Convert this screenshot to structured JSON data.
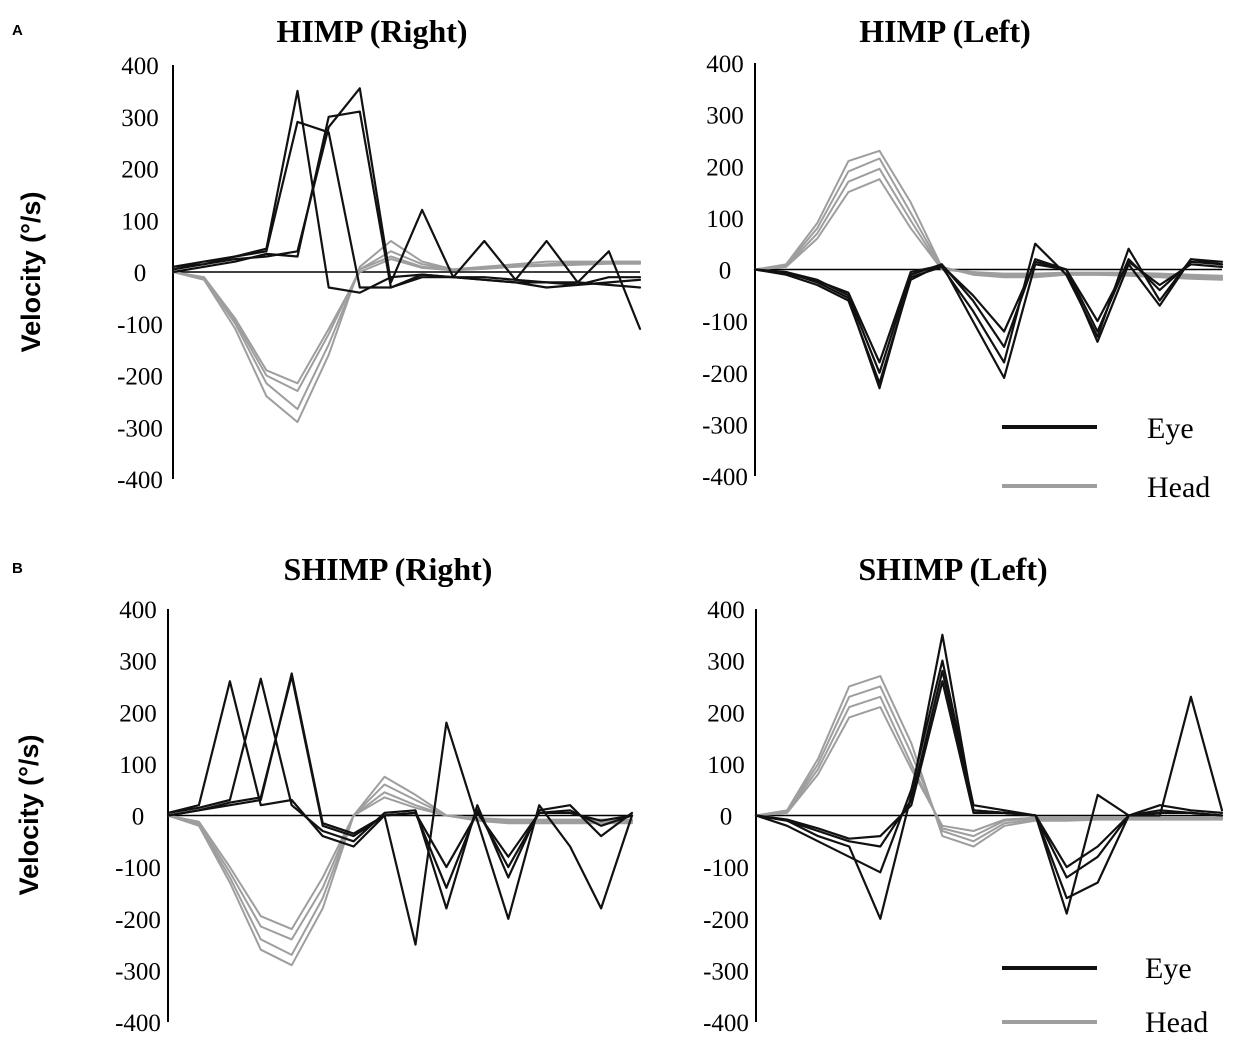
{
  "panels": [
    {
      "letter": "A"
    },
    {
      "letter": "B"
    }
  ],
  "legend": {
    "items": [
      {
        "label": "Eye",
        "color": "#111111"
      },
      {
        "label": "Head",
        "color": "#9e9e9e"
      }
    ]
  },
  "colors": {
    "eye": "#111111",
    "head": "#9e9e9e",
    "axis": "#000000"
  },
  "chart_data": [
    {
      "type": "line",
      "title": "HIMP (Right)",
      "ylabel": "Velocity (°/s)",
      "xlabel": "",
      "ylim": [
        -400,
        400
      ],
      "yticks": [
        400,
        300,
        200,
        100,
        0,
        -100,
        -200,
        -300,
        -400
      ],
      "x": [
        0,
        20,
        40,
        60,
        80,
        100,
        120,
        140,
        160,
        180,
        200,
        220,
        240,
        260,
        280,
        300
      ],
      "series": [
        {
          "group": "Head",
          "values": [
            0,
            -15,
            -110,
            -240,
            -290,
            -160,
            10,
            60,
            20,
            5,
            10,
            15,
            20,
            20,
            20,
            20
          ]
        },
        {
          "group": "Head",
          "values": [
            0,
            -12,
            -100,
            -215,
            -265,
            -140,
            5,
            40,
            15,
            5,
            8,
            12,
            15,
            18,
            20,
            20
          ]
        },
        {
          "group": "Head",
          "values": [
            0,
            -10,
            -95,
            -200,
            -230,
            -120,
            5,
            30,
            10,
            4,
            8,
            10,
            14,
            16,
            18,
            18
          ]
        },
        {
          "group": "Head",
          "values": [
            0,
            -10,
            -90,
            -190,
            -215,
            -110,
            0,
            25,
            8,
            3,
            6,
            10,
            12,
            14,
            16,
            16
          ]
        },
        {
          "group": "Eye",
          "values": [
            10,
            20,
            30,
            45,
            350,
            -30,
            -40,
            -10,
            -5,
            -10,
            -15,
            -20,
            -30,
            -25,
            -10,
            -10
          ]
        },
        {
          "group": "Eye",
          "values": [
            5,
            15,
            30,
            40,
            290,
            270,
            -30,
            -30,
            -10,
            -10,
            -15,
            -20,
            -20,
            -25,
            -20,
            -15
          ]
        },
        {
          "group": "Eye",
          "values": [
            0,
            10,
            20,
            35,
            30,
            300,
            310,
            -30,
            -5,
            -10,
            -10,
            -15,
            -20,
            -20,
            -25,
            -30
          ]
        },
        {
          "group": "Eye",
          "values": [
            10,
            15,
            25,
            30,
            40,
            280,
            355,
            -20,
            120,
            -10,
            60,
            -15,
            60,
            -20,
            40,
            -110
          ]
        }
      ]
    },
    {
      "type": "line",
      "title": "HIMP (Left)",
      "ylabel": "",
      "xlabel": "",
      "ylim": [
        -400,
        400
      ],
      "yticks": [
        400,
        300,
        200,
        100,
        0,
        -100,
        -200,
        -300,
        -400
      ],
      "x": [
        0,
        20,
        40,
        60,
        80,
        100,
        120,
        140,
        160,
        180,
        200,
        220,
        240,
        260,
        280,
        300
      ],
      "series": [
        {
          "group": "Head",
          "values": [
            0,
            10,
            90,
            210,
            230,
            130,
            5,
            -10,
            -15,
            -15,
            -10,
            -10,
            -12,
            -15,
            -18,
            -20
          ]
        },
        {
          "group": "Head",
          "values": [
            0,
            8,
            80,
            190,
            215,
            110,
            3,
            -8,
            -12,
            -12,
            -10,
            -10,
            -10,
            -12,
            -15,
            -18
          ]
        },
        {
          "group": "Head",
          "values": [
            0,
            6,
            70,
            170,
            195,
            95,
            0,
            -5,
            -10,
            -10,
            -8,
            -8,
            -8,
            -10,
            -12,
            -15
          ]
        },
        {
          "group": "Head",
          "values": [
            0,
            5,
            60,
            150,
            175,
            80,
            0,
            -5,
            -8,
            -8,
            -6,
            -6,
            -6,
            -8,
            -10,
            -12
          ]
        },
        {
          "group": "Eye",
          "values": [
            0,
            -10,
            -30,
            -60,
            -220,
            -20,
            10,
            -100,
            -210,
            10,
            0,
            -140,
            10,
            -70,
            20,
            15
          ]
        },
        {
          "group": "Eye",
          "values": [
            0,
            -5,
            -25,
            -55,
            -230,
            -15,
            5,
            -80,
            -180,
            50,
            -10,
            -130,
            40,
            -60,
            20,
            10
          ]
        },
        {
          "group": "Eye",
          "values": [
            0,
            -5,
            -20,
            -50,
            -200,
            -10,
            10,
            -60,
            -150,
            20,
            0,
            -120,
            20,
            -40,
            15,
            10
          ]
        },
        {
          "group": "Eye",
          "values": [
            0,
            -8,
            -22,
            -45,
            -180,
            -5,
            8,
            -50,
            -120,
            15,
            0,
            -100,
            15,
            -30,
            10,
            5
          ]
        }
      ]
    },
    {
      "type": "line",
      "title": "SHIMP (Right)",
      "ylabel": "Velocity (°/s)",
      "xlabel": "",
      "ylim": [
        -400,
        400
      ],
      "yticks": [
        400,
        300,
        200,
        100,
        0,
        -100,
        -200,
        -300,
        -400
      ],
      "x": [
        0,
        20,
        40,
        60,
        80,
        100,
        120,
        140,
        160,
        180,
        200,
        220,
        240,
        260,
        280,
        300
      ],
      "series": [
        {
          "group": "Head",
          "values": [
            0,
            -20,
            -130,
            -260,
            -290,
            -180,
            0,
            75,
            40,
            0,
            -10,
            -15,
            -15,
            -15,
            -15,
            -15
          ]
        },
        {
          "group": "Head",
          "values": [
            0,
            -18,
            -120,
            -240,
            -270,
            -160,
            0,
            60,
            30,
            0,
            -8,
            -12,
            -12,
            -12,
            -12,
            -12
          ]
        },
        {
          "group": "Head",
          "values": [
            0,
            -15,
            -110,
            -215,
            -240,
            -140,
            0,
            45,
            20,
            0,
            -5,
            -10,
            -10,
            -10,
            -10,
            -10
          ]
        },
        {
          "group": "Head",
          "values": [
            0,
            -12,
            -100,
            -195,
            -220,
            -120,
            0,
            35,
            15,
            0,
            -5,
            -8,
            -8,
            -8,
            -8,
            -8
          ]
        },
        {
          "group": "Eye",
          "values": [
            5,
            20,
            260,
            20,
            30,
            -40,
            -60,
            0,
            -250,
            180,
            -10,
            -200,
            20,
            -60,
            -180,
            0
          ]
        },
        {
          "group": "Eye",
          "values": [
            5,
            15,
            30,
            265,
            20,
            -30,
            -50,
            5,
            10,
            -180,
            20,
            -120,
            10,
            20,
            -40,
            5
          ]
        },
        {
          "group": "Eye",
          "values": [
            0,
            10,
            25,
            35,
            270,
            -20,
            -40,
            0,
            5,
            -140,
            10,
            -100,
            5,
            10,
            -20,
            0
          ]
        },
        {
          "group": "Eye",
          "values": [
            0,
            10,
            20,
            30,
            275,
            -15,
            -35,
            0,
            5,
            -100,
            5,
            -80,
            5,
            5,
            -10,
            0
          ]
        }
      ]
    },
    {
      "type": "line",
      "title": "SHIMP (Left)",
      "ylabel": "",
      "xlabel": "",
      "ylim": [
        -400,
        400
      ],
      "yticks": [
        400,
        300,
        200,
        100,
        0,
        -100,
        -200,
        -300,
        -400
      ],
      "x": [
        0,
        20,
        40,
        60,
        80,
        100,
        120,
        140,
        160,
        180,
        200,
        220,
        240,
        260,
        280,
        300
      ],
      "series": [
        {
          "group": "Head",
          "values": [
            0,
            10,
            110,
            250,
            270,
            140,
            -40,
            -60,
            -20,
            -10,
            -10,
            -8,
            -8,
            -8,
            -8,
            -8
          ]
        },
        {
          "group": "Head",
          "values": [
            0,
            8,
            100,
            230,
            250,
            120,
            -30,
            -50,
            -15,
            -8,
            -8,
            -6,
            -6,
            -6,
            -6,
            -6
          ]
        },
        {
          "group": "Head",
          "values": [
            0,
            6,
            90,
            210,
            230,
            100,
            -25,
            -40,
            -10,
            -5,
            -5,
            -5,
            -5,
            -5,
            -5,
            -5
          ]
        },
        {
          "group": "Head",
          "values": [
            0,
            5,
            80,
            190,
            210,
            90,
            -20,
            -30,
            -8,
            -4,
            -4,
            -4,
            -4,
            -4,
            -4,
            -4
          ]
        },
        {
          "group": "Eye",
          "values": [
            0,
            -10,
            -40,
            -60,
            -200,
            40,
            350,
            10,
            5,
            0,
            -190,
            40,
            0,
            0,
            230,
            10
          ]
        },
        {
          "group": "Eye",
          "values": [
            0,
            -20,
            -50,
            -80,
            -110,
            50,
            300,
            20,
            10,
            0,
            -160,
            -130,
            0,
            20,
            10,
            5
          ]
        },
        {
          "group": "Eye",
          "values": [
            0,
            -10,
            -30,
            -50,
            -60,
            30,
            280,
            10,
            5,
            0,
            -120,
            -80,
            0,
            10,
            5,
            0
          ]
        },
        {
          "group": "Eye",
          "values": [
            0,
            -8,
            -25,
            -45,
            -40,
            20,
            260,
            5,
            5,
            0,
            -100,
            -60,
            0,
            5,
            5,
            0
          ]
        }
      ]
    }
  ]
}
